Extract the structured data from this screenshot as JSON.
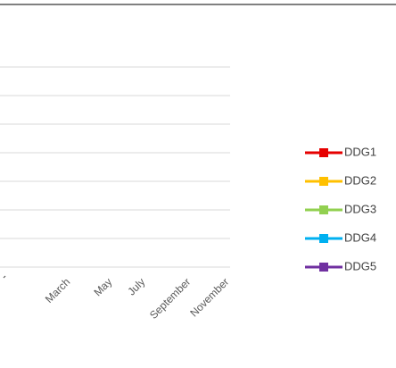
{
  "chart_data": {
    "type": "line",
    "x_categories": [
      "March",
      "May",
      "July",
      "September",
      "November"
    ],
    "series": [
      {
        "name": "DDG1",
        "color": "#e60000",
        "values": []
      },
      {
        "name": "DDG2",
        "color": "#ffc000",
        "values": []
      },
      {
        "name": "DDG3",
        "color": "#92d050",
        "values": []
      },
      {
        "name": "DDG4",
        "color": "#00b0f0",
        "values": []
      },
      {
        "name": "DDG5",
        "color": "#7030a0",
        "values": []
      }
    ],
    "gridlines": 8,
    "grid": true,
    "legend_position": "right",
    "colors": {
      "top_rule": "#000000",
      "gridline": "#d9d9d9"
    }
  }
}
